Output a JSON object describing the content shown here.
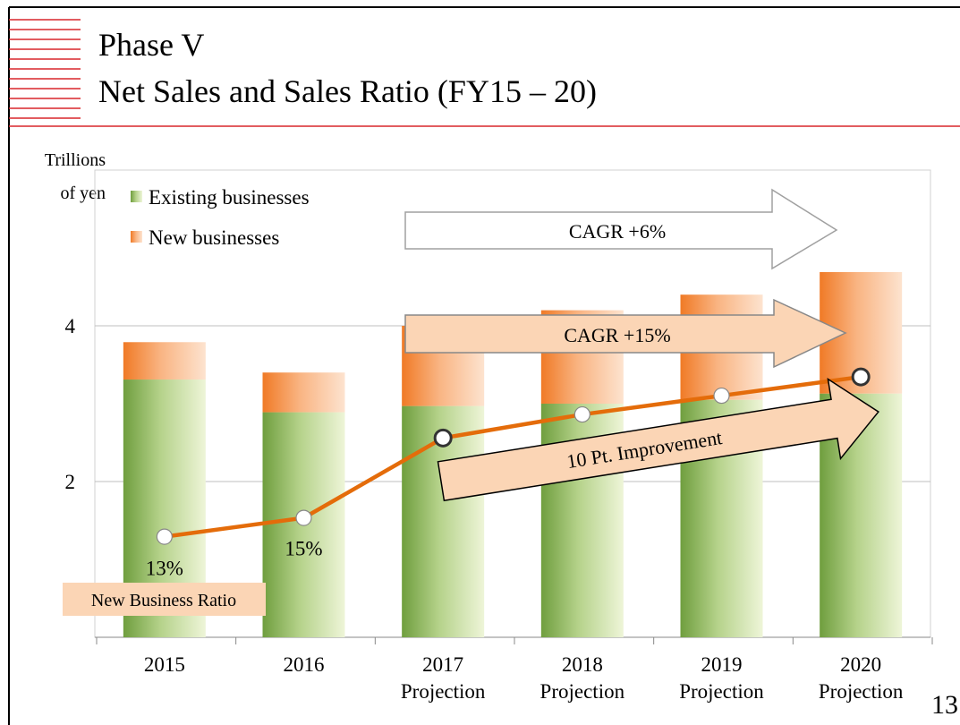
{
  "chart_data": {
    "type": "stacked-bar-line",
    "title": "Phase V",
    "subtitle": "Net Sales and Sales Ratio (FY15 – 20)",
    "ylabel_lines": [
      "Trillions",
      "of yen"
    ],
    "categories": [
      "2015",
      "2016",
      "2017\nProjection",
      "2018\nProjection",
      "2019\nProjection",
      "2020\nProjection"
    ],
    "series": [
      {
        "name": "Existing businesses",
        "color": "#7aa84a",
        "values": [
          3.31,
          2.89,
          2.97,
          3.0,
          3.05,
          3.13
        ]
      },
      {
        "name": "New businesses",
        "color": "#f0802f",
        "values": [
          0.48,
          0.51,
          1.03,
          1.2,
          1.35,
          1.56
        ]
      },
      {
        "name": "New Business Ratio",
        "color": "#e46c0a",
        "axis": "y2",
        "values": [
          13,
          15,
          23.5,
          26,
          28,
          30
        ],
        "value_labels": [
          "13%",
          "15%",
          null,
          null,
          null,
          null
        ]
      }
    ],
    "ylim": [
      0,
      6
    ],
    "yticks": [
      2,
      4
    ],
    "y2lim": [
      2.3,
      52
    ],
    "grid": true,
    "annotations": [
      "CAGR +6%",
      "CAGR +15%",
      "10 Pt. Improvement"
    ],
    "page_number": "13"
  }
}
